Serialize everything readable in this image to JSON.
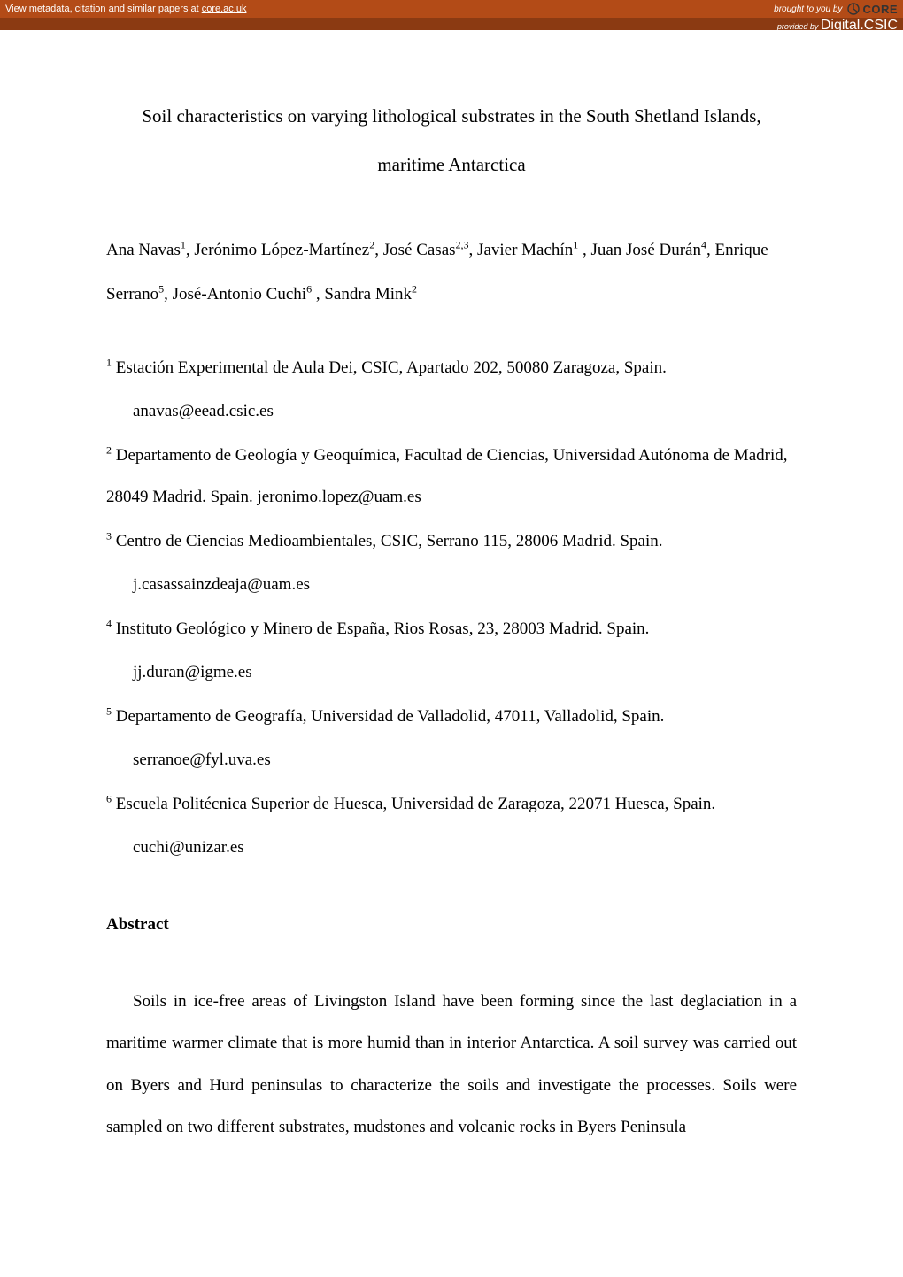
{
  "topbar": {
    "left_prefix": "View metadata, citation and similar papers at ",
    "left_link": "core.ac.uk",
    "brought": "brought to you by",
    "core": "CORE",
    "provided_prefix": "provided by ",
    "provided_link": "Digital.CSIC"
  },
  "paper": {
    "title_line1": "Soil characteristics on varying lithological substrates in the South Shetland Islands,",
    "title_line2": "maritime Antarctica",
    "authors_html": "Ana Navas<sup>1</sup>, Jerónimo López-Martínez<sup>2</sup>, José Casas<sup>2,3</sup>, Javier Machín<sup>1</sup> , Juan José Durán<sup>4</sup>, Enrique Serrano<sup>5</sup>, José-Antonio Cuchi<sup>6</sup> , Sandra Mink<sup>2</sup>",
    "affiliations": [
      {
        "num": "1",
        "text": "Estación Experimental de Aula Dei, CSIC, Apartado 202,  50080 Zaragoza, Spain.",
        "email": "anavas@eead.csic.es"
      },
      {
        "num": "2",
        "text": "Departamento de  Geología y Geoquímica, Facultad de Ciencias, Universidad Autónoma de Madrid, 28049 Madrid. Spain. jeronimo.lopez@uam.es",
        "email": ""
      },
      {
        "num": "3",
        "text": "Centro de Ciencias Medioambientales, CSIC, Serrano 115, 28006 Madrid. Spain.",
        "email": "j.casassainzdeaja@uam.es"
      },
      {
        "num": "4",
        "text": "Instituto Geológico y Minero de España, Rios Rosas, 23, 28003 Madrid. Spain.",
        "email": "jj.duran@igme.es"
      },
      {
        "num": "5",
        "text": "Departamento de  Geografía, Universidad de Valladolid, 47011, Valladolid, Spain.",
        "email": "serranoe@fyl.uva.es"
      },
      {
        "num": "6",
        "text": "Escuela Politécnica Superior de Huesca, Universidad de Zaragoza, 22071 Huesca, Spain.",
        "email": "cuchi@unizar.es"
      }
    ],
    "abstract_heading": "Abstract",
    "abstract_body": "Soils in ice-free areas of Livingston Island have been forming since the last deglaciation in a maritime warmer climate that is more humid than in interior Antarctica. A soil survey was carried out on Byers and Hurd peninsulas to characterize the soils and investigate the processes. Soils were sampled on two different substrates, mudstones and volcanic rocks in Byers Peninsula"
  },
  "colors": {
    "topbar_bg": "#b34b17",
    "subbar_bg": "#8b3a12",
    "text": "#000000",
    "page_bg": "#ffffff",
    "link": "#ffffff"
  }
}
